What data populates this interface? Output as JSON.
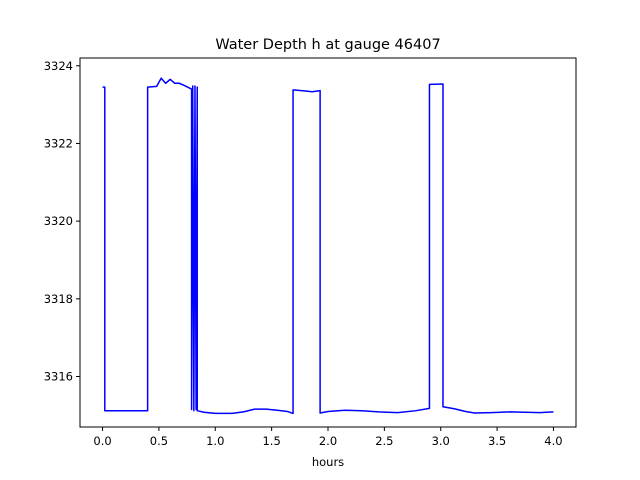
{
  "chart_data": {
    "type": "line",
    "title": "Water Depth h at gauge 46407",
    "xlabel": "hours",
    "ylabel": "",
    "xlim": [
      -0.2,
      4.2
    ],
    "ylim": [
      3314.7,
      3324.2
    ],
    "xticks": [
      0.0,
      0.5,
      1.0,
      1.5,
      2.0,
      2.5,
      3.0,
      3.5,
      4.0
    ],
    "xtick_labels": [
      "0.0",
      "0.5",
      "1.0",
      "1.5",
      "2.0",
      "2.5",
      "3.0",
      "3.5",
      "4.0"
    ],
    "yticks": [
      3316,
      3318,
      3320,
      3322,
      3324
    ],
    "ytick_labels": [
      "3316",
      "3318",
      "3320",
      "3322",
      "3324"
    ],
    "grid": false,
    "line_color": "#0000ff",
    "series": [
      {
        "x": [
          0.0,
          0.02,
          0.02,
          0.4,
          0.4,
          0.48,
          0.52,
          0.56,
          0.6,
          0.64,
          0.68,
          0.72,
          0.79,
          0.79,
          0.8,
          0.81,
          0.82,
          0.83,
          0.84,
          0.84,
          0.9,
          1.0,
          1.15,
          1.25,
          1.35,
          1.45,
          1.55,
          1.64,
          1.69,
          1.69,
          1.8,
          1.86,
          1.93,
          1.93,
          2.0,
          2.15,
          2.3,
          2.45,
          2.62,
          2.78,
          2.9,
          2.9,
          3.02,
          3.02,
          3.12,
          3.22,
          3.3,
          3.45,
          3.62,
          3.75,
          3.88,
          4.0
        ],
        "y": [
          3323.45,
          3323.45,
          3315.12,
          3315.12,
          3323.45,
          3323.47,
          3323.68,
          3323.55,
          3323.65,
          3323.55,
          3323.55,
          3323.5,
          3323.4,
          3315.15,
          3323.48,
          3315.12,
          3323.48,
          3315.15,
          3323.45,
          3315.12,
          3315.08,
          3315.05,
          3315.05,
          3315.09,
          3315.16,
          3315.16,
          3315.13,
          3315.1,
          3315.05,
          3323.38,
          3323.35,
          3323.33,
          3323.36,
          3315.06,
          3315.1,
          3315.13,
          3315.12,
          3315.09,
          3315.07,
          3315.12,
          3315.18,
          3323.52,
          3323.53,
          3315.22,
          3315.17,
          3315.1,
          3315.06,
          3315.07,
          3315.09,
          3315.08,
          3315.07,
          3315.09
        ]
      }
    ]
  }
}
